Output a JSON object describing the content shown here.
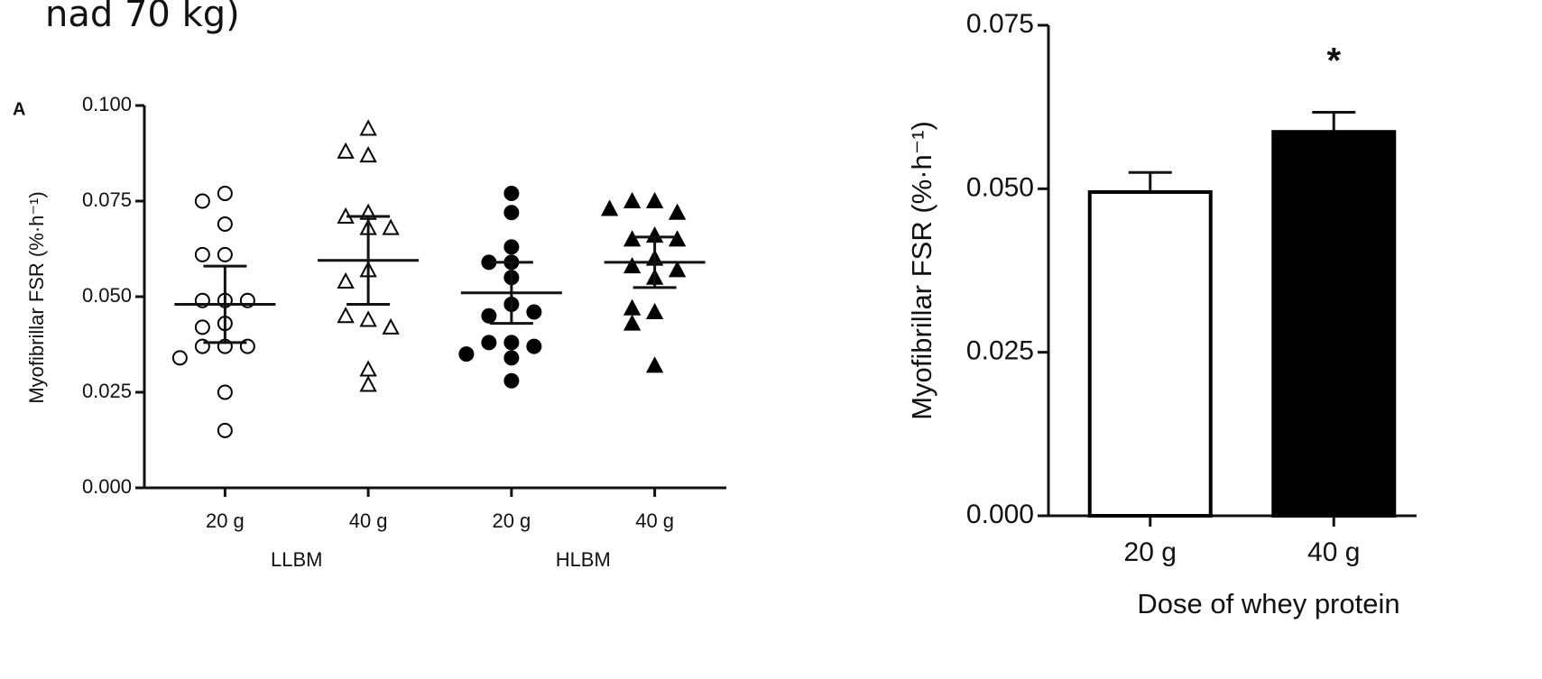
{
  "caption_fragment": "nad 70 kg)",
  "chart_data": [
    {
      "type": "strip",
      "panel_label": "A",
      "ylabel": "Myofibrillar FSR (%·h⁻¹)",
      "categories": [
        "20 g",
        "40 g",
        "20 g",
        "40 g"
      ],
      "group_labels": [
        "LLBM",
        "HLBM"
      ],
      "ylim": [
        0,
        0.1
      ],
      "yticks": [
        {
          "value": 0,
          "label": "0.000"
        },
        {
          "value": 0.025,
          "label": "0.025"
        },
        {
          "value": 0.05,
          "label": "0.050"
        },
        {
          "value": 0.075,
          "label": "0.075"
        },
        {
          "value": 0.1,
          "label": "0.100"
        }
      ],
      "series": [
        {
          "marker": "circle",
          "filled": false,
          "color": "#000000",
          "mean": 0.048,
          "error": 0.01,
          "values": [
            0.077,
            0.075,
            0.069,
            0.061,
            0.061,
            0.049,
            0.049,
            0.049,
            0.043,
            0.042,
            0.037,
            0.037,
            0.037,
            0.034,
            0.025,
            0.015
          ]
        },
        {
          "marker": "triangle",
          "filled": false,
          "color": "#000000",
          "mean": 0.0595,
          "error": 0.0115,
          "values": [
            0.094,
            0.087,
            0.088,
            0.072,
            0.071,
            0.068,
            0.068,
            0.057,
            0.054,
            0.044,
            0.045,
            0.042,
            0.031,
            0.027
          ]
        },
        {
          "marker": "circle",
          "filled": true,
          "color": "#000000",
          "mean": 0.051,
          "error": 0.008,
          "values": [
            0.077,
            0.072,
            0.063,
            0.059,
            0.059,
            0.055,
            0.048,
            0.045,
            0.046,
            0.038,
            0.038,
            0.037,
            0.034,
            0.035,
            0.028
          ]
        },
        {
          "marker": "triangle",
          "filled": true,
          "color": "#000000",
          "mean": 0.059,
          "error": 0.0066,
          "values": [
            0.075,
            0.075,
            0.072,
            0.073,
            0.066,
            0.065,
            0.065,
            0.06,
            0.058,
            0.055,
            0.057,
            0.046,
            0.047,
            0.043,
            0.032
          ]
        }
      ]
    },
    {
      "type": "bar",
      "ylabel": "Myofibrillar FSR (%·h⁻¹)",
      "xlabel": "Dose of whey protein",
      "categories": [
        "20 g",
        "40 g"
      ],
      "values": [
        0.0495,
        0.0587
      ],
      "errors": [
        0.003,
        0.003
      ],
      "colors": [
        "#ffffff",
        "#000000"
      ],
      "ylim": [
        0,
        0.075
      ],
      "yticks": [
        {
          "value": 0,
          "label": "0.000"
        },
        {
          "value": 0.025,
          "label": "0.025"
        },
        {
          "value": 0.05,
          "label": "0.050"
        },
        {
          "value": 0.075,
          "label": "0.075"
        }
      ],
      "annotations": [
        {
          "text": "*",
          "x": "40 g"
        }
      ]
    }
  ]
}
